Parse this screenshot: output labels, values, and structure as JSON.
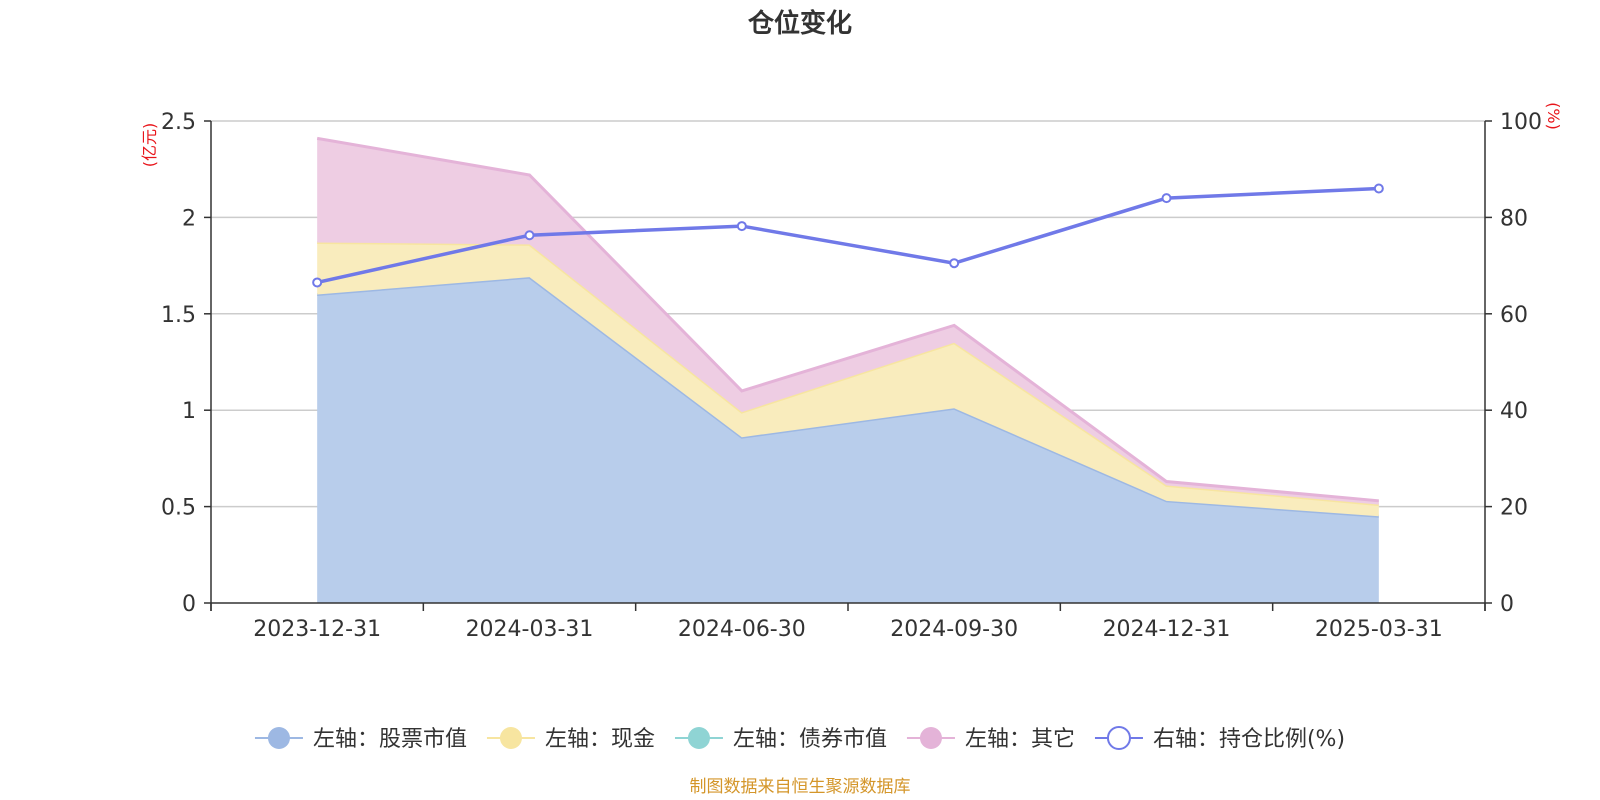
{
  "chart_data": {
    "type": "area",
    "title": "仓位变化",
    "categories": [
      "2023-12-31",
      "2024-03-31",
      "2024-06-30",
      "2024-09-30",
      "2024-12-31",
      "2025-03-31"
    ],
    "left_axis": {
      "unit": "(亿元)",
      "ylim": [
        0,
        2.5
      ],
      "ticks": [
        "0",
        "0.5",
        "1",
        "1.5",
        "2",
        "2.5"
      ]
    },
    "right_axis": {
      "unit": "(%)",
      "ylim": [
        0,
        100
      ],
      "ticks": [
        "0",
        "20",
        "40",
        "60",
        "80",
        "100"
      ]
    },
    "stacked": true,
    "grid": true,
    "legend_position": "bottom",
    "series": [
      {
        "name": "左轴：股票市值",
        "axis": "left",
        "kind": "area",
        "color": "#9db8e3",
        "fill": "#b8cdeb",
        "values": [
          1.6,
          1.69,
          0.86,
          1.01,
          0.53,
          0.45
        ]
      },
      {
        "name": "左轴：现金",
        "axis": "left",
        "kind": "area",
        "color": "#f7e5a0",
        "fill": "#f9ecbd",
        "values": [
          0.27,
          0.17,
          0.13,
          0.34,
          0.08,
          0.06
        ]
      },
      {
        "name": "左轴：债券市值",
        "axis": "left",
        "kind": "area",
        "color": "#8fd4d4",
        "fill": "#8fd4d4",
        "values": [
          0,
          0,
          0,
          0,
          0,
          0
        ]
      },
      {
        "name": "左轴：其它",
        "axis": "left",
        "kind": "area",
        "color": "#e4b3d8",
        "fill": "#eecde3",
        "values": [
          0.54,
          0.36,
          0.11,
          0.09,
          0.02,
          0.02
        ]
      },
      {
        "name": "右轴：持仓比例(%)",
        "axis": "right",
        "kind": "line",
        "color": "#7079e8",
        "values": [
          66.5,
          76.3,
          78.2,
          70.5,
          84.0,
          86.0
        ]
      }
    ],
    "source": "制图数据来自恒生聚源数据库"
  }
}
